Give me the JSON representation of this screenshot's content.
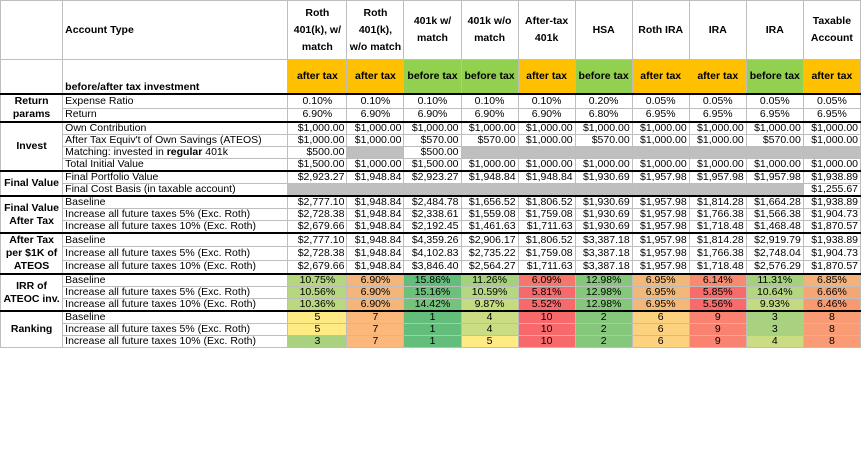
{
  "header": {
    "account_type_label": "Account Type",
    "tax_row_label": "before/after tax investment",
    "columns": [
      {
        "name": "Roth 401(k), w/ match",
        "tax": "after tax",
        "tax_color": "#ffc000"
      },
      {
        "name": "Roth 401(k), w/o match",
        "tax": "after tax",
        "tax_color": "#ffc000"
      },
      {
        "name": "401k w/ match",
        "tax": "before tax",
        "tax_color": "#92d050"
      },
      {
        "name": "401k w/o match",
        "tax": "before tax",
        "tax_color": "#92d050"
      },
      {
        "name": "After-tax 401k",
        "tax": "after tax",
        "tax_color": "#ffc000"
      },
      {
        "name": "HSA",
        "tax": "before tax",
        "tax_color": "#92d050"
      },
      {
        "name": "Roth IRA",
        "tax": "after tax",
        "tax_color": "#ffc000"
      },
      {
        "name": "IRA",
        "tax": "after tax",
        "tax_color": "#ffc000"
      },
      {
        "name": "IRA",
        "tax": "before tax",
        "tax_color": "#92d050"
      },
      {
        "name": "Taxable Account",
        "tax": "after tax",
        "tax_color": "#ffc000"
      }
    ]
  },
  "sections": [
    {
      "group": "Return params",
      "rows": [
        {
          "label": "Expense Ratio",
          "cells": [
            "0.10%",
            "0.10%",
            "0.10%",
            "0.10%",
            "0.10%",
            "0.20%",
            "0.05%",
            "0.05%",
            "0.05%",
            "0.05%"
          ],
          "align": "ctr"
        },
        {
          "label": "Return",
          "cells": [
            "6.90%",
            "6.90%",
            "6.90%",
            "6.90%",
            "6.90%",
            "6.80%",
            "6.95%",
            "6.95%",
            "6.95%",
            "6.95%"
          ],
          "align": "ctr"
        }
      ]
    },
    {
      "group": "Invest",
      "rows": [
        {
          "label": "Own Contribution",
          "cells": [
            "$1,000.00",
            "$1,000.00",
            "$1,000.00",
            "$1,000.00",
            "$1,000.00",
            "$1,000.00",
            "$1,000.00",
            "$1,000.00",
            "$1,000.00",
            "$1,000.00"
          ],
          "align": "num"
        },
        {
          "label": "After Tax Equiv't of Own Savings (ATEOS)",
          "cells": [
            "$1,000.00",
            "$1,000.00",
            "$570.00",
            "$570.00",
            "$1,000.00",
            "$570.00",
            "$1,000.00",
            "$1,000.00",
            "$570.00",
            "$1,000.00"
          ],
          "align": "num"
        },
        {
          "label_pre": "Matching: invested in ",
          "label_bold": "regular",
          "label_post": " 401k",
          "cells": [
            "$500.00",
            null,
            "$500.00",
            null,
            null,
            null,
            null,
            null,
            null,
            null
          ],
          "align": "num",
          "gray_empty": true
        },
        {
          "label": "Total Initial Value",
          "cells": [
            "$1,500.00",
            "$1,000.00",
            "$1,500.00",
            "$1,000.00",
            "$1,000.00",
            "$1,000.00",
            "$1,000.00",
            "$1,000.00",
            "$1,000.00",
            "$1,000.00"
          ],
          "align": "num"
        }
      ]
    },
    {
      "group": "Final Value",
      "rows": [
        {
          "label": "Final Portfolio Value",
          "cells": [
            "$2,923.27",
            "$1,948.84",
            "$2,923.27",
            "$1,948.84",
            "$1,948.84",
            "$1,930.69",
            "$1,957.98",
            "$1,957.98",
            "$1,957.98",
            "$1,938.89"
          ],
          "align": "num"
        },
        {
          "label": "Final Cost Basis (in taxable account)",
          "cells": [
            null,
            null,
            null,
            null,
            null,
            null,
            null,
            null,
            null,
            "$1,255.67"
          ],
          "align": "num",
          "gray_empty": true
        }
      ]
    },
    {
      "group": "Final Value After Tax",
      "rows": [
        {
          "label": "Baseline",
          "cells": [
            "$2,777.10",
            "$1,948.84",
            "$2,484.78",
            "$1,656.52",
            "$1,806.52",
            "$1,930.69",
            "$1,957.98",
            "$1,814.28",
            "$1,664.28",
            "$1,938.89"
          ],
          "align": "num"
        },
        {
          "label": "Increase all future taxes 5% (Exc. Roth)",
          "cells": [
            "$2,728.38",
            "$1,948.84",
            "$2,338.61",
            "$1,559.08",
            "$1,759.08",
            "$1,930.69",
            "$1,957.98",
            "$1,766.38",
            "$1,566.38",
            "$1,904.73"
          ],
          "align": "num"
        },
        {
          "label": "Increase all future taxes 10% (Exc. Roth)",
          "cells": [
            "$2,679.66",
            "$1,948.84",
            "$2,192.45",
            "$1,461.63",
            "$1,711.63",
            "$1,930.69",
            "$1,957.98",
            "$1,718.48",
            "$1,468.48",
            "$1,870.57"
          ],
          "align": "num"
        }
      ]
    },
    {
      "group": "After Tax per $1K of ATEOS",
      "rows": [
        {
          "label": "Baseline",
          "cells": [
            "$2,777.10",
            "$1,948.84",
            "$4,359.26",
            "$2,906.17",
            "$1,806.52",
            "$3,387.18",
            "$1,957.98",
            "$1,814.28",
            "$2,919.79",
            "$1,938.89"
          ],
          "align": "num"
        },
        {
          "label": "Increase all future taxes 5% (Exc. Roth)",
          "cells": [
            "$2,728.38",
            "$1,948.84",
            "$4,102.83",
            "$2,735.22",
            "$1,759.08",
            "$3,387.18",
            "$1,957.98",
            "$1,766.38",
            "$2,748.04",
            "$1,904.73"
          ],
          "align": "num"
        },
        {
          "label": "Increase all future taxes 10% (Exc. Roth)",
          "cells": [
            "$2,679.66",
            "$1,948.84",
            "$3,846.40",
            "$2,564.27",
            "$1,711.63",
            "$3,387.18",
            "$1,957.98",
            "$1,718.48",
            "$2,576.29",
            "$1,870.57"
          ],
          "align": "num"
        }
      ]
    },
    {
      "group": "IRR of ATEOC inv.",
      "rows": [
        {
          "label": "Baseline",
          "cells": [
            "10.75%",
            "6.90%",
            "15.86%",
            "11.26%",
            "6.09%",
            "12.98%",
            "6.95%",
            "6.14%",
            "11.31%",
            "6.85%"
          ],
          "colors": [
            "#b3d67f",
            "#f3b57a",
            "#63be7b",
            "#a5d17d",
            "#f8756b",
            "#85c87c",
            "#f1b879",
            "#f78a6f",
            "#a3d17d",
            "#f4b27a"
          ],
          "align": "ctr"
        },
        {
          "label": "Increase all future taxes 5% (Exc. Roth)",
          "cells": [
            "10.56%",
            "6.90%",
            "15.16%",
            "10.59%",
            "5.81%",
            "12.98%",
            "6.95%",
            "5.85%",
            "10.64%",
            "6.66%"
          ],
          "colors": [
            "#b6d77f",
            "#f3b57a",
            "#6cc07b",
            "#b5d77f",
            "#f8696b",
            "#85c87c",
            "#f1b879",
            "#f86b6b",
            "#b4d67f",
            "#f5a675"
          ],
          "align": "ctr"
        },
        {
          "label": "Increase all future taxes 10% (Exc. Roth)",
          "cells": [
            "10.36%",
            "6.90%",
            "14.42%",
            "9.87%",
            "5.52%",
            "12.98%",
            "6.95%",
            "5.56%",
            "9.93%",
            "6.46%"
          ],
          "colors": [
            "#bad880",
            "#f3b57a",
            "#75c37c",
            "#c5db80",
            "#f8696b",
            "#85c87c",
            "#f1b879",
            "#f86a6b",
            "#c3db80",
            "#f79a72"
          ],
          "align": "ctr"
        }
      ]
    },
    {
      "group": "Ranking",
      "rows": [
        {
          "label": "Baseline",
          "cells": [
            "5",
            "7",
            "1",
            "4",
            "10",
            "2",
            "6",
            "9",
            "3",
            "8"
          ],
          "align": "ctr"
        },
        {
          "label": "Increase all future taxes 5% (Exc. Roth)",
          "cells": [
            "5",
            "7",
            "1",
            "4",
            "10",
            "2",
            "6",
            "9",
            "3",
            "8"
          ],
          "align": "ctr"
        },
        {
          "label": "Increase all future taxes 10% (Exc. Roth)",
          "cells": [
            "3",
            "7",
            "1",
            "5",
            "10",
            "2",
            "6",
            "9",
            "4",
            "8"
          ],
          "align": "ctr"
        }
      ],
      "rank_colors": {
        "1": "#63be7b",
        "2": "#85c87c",
        "3": "#a8d27f",
        "4": "#cbdd82",
        "5": "#ffeb84",
        "6": "#fdd27f",
        "7": "#fcb77a",
        "8": "#f99c75",
        "9": "#f98370",
        "10": "#f8696b"
      }
    }
  ]
}
